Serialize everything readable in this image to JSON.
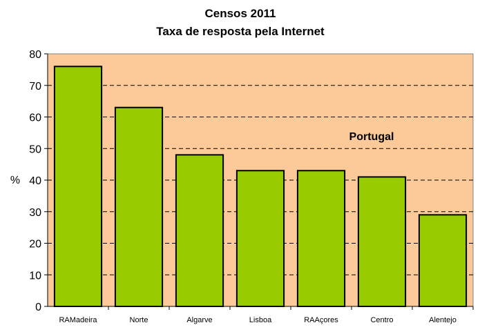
{
  "chart_data": {
    "type": "bar",
    "title": "Censos 2011",
    "subtitle": "Taxa de resposta pela Internet",
    "annotation": "Portugal",
    "xlabel": "",
    "ylabel": "%",
    "ylim": [
      0,
      80
    ],
    "yticks": [
      0,
      10,
      20,
      30,
      40,
      50,
      60,
      70,
      80
    ],
    "grid": true,
    "categories": [
      "RAMadeira",
      "Norte",
      "Algarve",
      "Lisboa",
      "RAAçores",
      "Centro",
      "Alentejo"
    ],
    "values": [
      76,
      63,
      48,
      43,
      43,
      41,
      29
    ],
    "colors": {
      "bar": "#99CC00",
      "plot_background": "#FCC998",
      "bar_border": "#000000"
    }
  }
}
